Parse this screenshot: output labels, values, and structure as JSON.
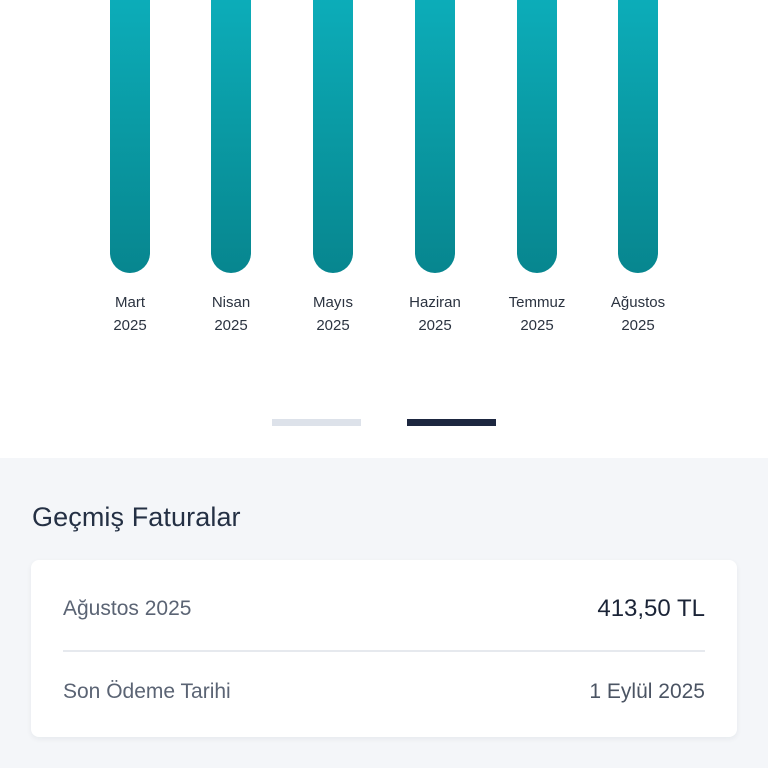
{
  "chart_data": {
    "type": "bar",
    "categories": [
      [
        "Mart",
        "2025"
      ],
      [
        "Nisan",
        "2025"
      ],
      [
        "Mayıs",
        "2025"
      ],
      [
        "Haziran",
        "2025"
      ],
      [
        "Temmuz",
        "2025"
      ],
      [
        "Ağustos",
        "2025"
      ]
    ],
    "colors": {
      "bar_top": "#0db1be",
      "bar_bottom": "#07868f"
    }
  },
  "pager": {
    "pages": 2,
    "active_index": 1
  },
  "history": {
    "title": "Geçmiş Faturalar",
    "invoice": {
      "period": "Ağustos 2025",
      "amount": "413,50 TL",
      "due_label": "Son Ödeme Tarihi",
      "due_date": "1 Eylül 2025"
    }
  }
}
